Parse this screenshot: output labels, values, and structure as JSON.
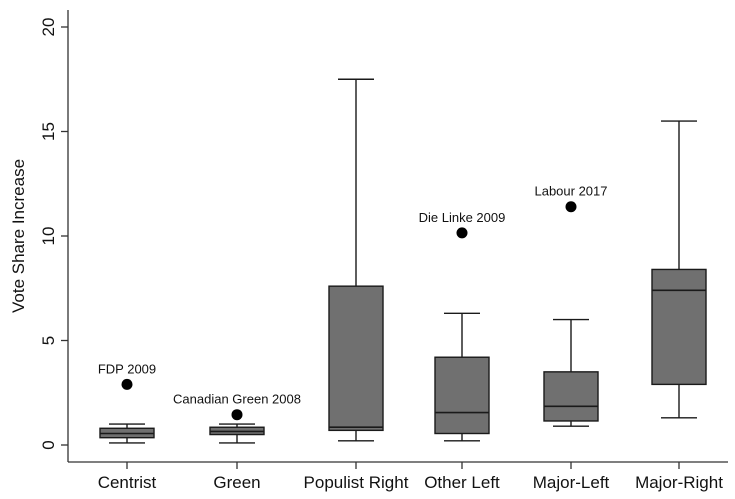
{
  "chart_data": {
    "type": "box",
    "title": "",
    "xlabel": "",
    "ylabel": "Vote Share Increase",
    "ylim": [
      0,
      20
    ],
    "yticks": [
      0,
      5,
      10,
      15,
      20
    ],
    "grid": false,
    "legend": "none",
    "colors": {
      "box_fill": "#707070",
      "line": "#1a1a1a",
      "axis": "#333333",
      "outlier": "#000000"
    },
    "categories": [
      "Centrist",
      "Green",
      "Populist Right",
      "Other Left",
      "Major-Left",
      "Major-Right"
    ],
    "boxes": [
      {
        "category": "Centrist",
        "whisker_low": 0.1,
        "q1": 0.35,
        "median": 0.55,
        "q3": 0.8,
        "whisker_high": 1.0
      },
      {
        "category": "Green",
        "whisker_low": 0.1,
        "q1": 0.5,
        "median": 0.65,
        "q3": 0.85,
        "whisker_high": 1.0
      },
      {
        "category": "Populist Right",
        "whisker_low": 0.2,
        "q1": 0.7,
        "median": 0.85,
        "q3": 7.6,
        "whisker_high": 17.5
      },
      {
        "category": "Other Left",
        "whisker_low": 0.2,
        "q1": 0.55,
        "median": 1.55,
        "q3": 4.2,
        "whisker_high": 6.3
      },
      {
        "category": "Major-Left",
        "whisker_low": 0.9,
        "q1": 1.15,
        "median": 1.85,
        "q3": 3.5,
        "whisker_high": 6.0
      },
      {
        "category": "Major-Right",
        "whisker_low": 1.3,
        "q1": 2.9,
        "median": 7.4,
        "q3": 8.4,
        "whisker_high": 15.5
      }
    ],
    "outliers": [
      {
        "category": "Centrist",
        "value": 2.9,
        "label": "FDP 2009"
      },
      {
        "category": "Green",
        "value": 1.45,
        "label": "Canadian Green 2008"
      },
      {
        "category": "Other Left",
        "value": 10.15,
        "label": "Die Linke 2009"
      },
      {
        "category": "Major-Left",
        "value": 11.4,
        "label": "Labour 2017"
      }
    ]
  }
}
